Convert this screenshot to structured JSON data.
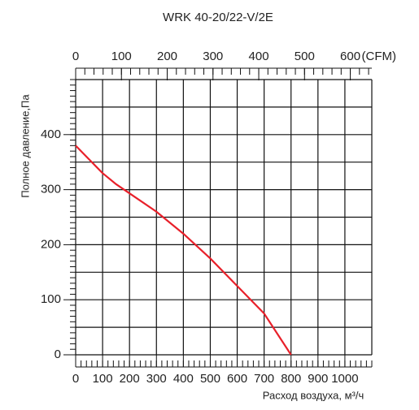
{
  "chart_data": {
    "type": "line",
    "title": "WRK 40-20/22-V/2E",
    "x_label": "Расход воздуха, м³/ч",
    "y_label": "Полное давление,Па",
    "x": [
      0,
      100,
      150,
      300,
      400,
      500,
      600,
      700,
      800
    ],
    "series": [
      {
        "name": "WRK 40-20/22-V/2E",
        "color": "#e8202a",
        "values": [
          380,
          330,
          310,
          260,
          220,
          175,
          125,
          75,
          0
        ]
      }
    ],
    "xlim": [
      0,
      1100
    ],
    "xticks": [
      0,
      100,
      200,
      300,
      400,
      500,
      600,
      700,
      800,
      900,
      1000
    ],
    "x2lim": [
      0,
      647
    ],
    "x2ticks": [
      0,
      100,
      200,
      300,
      400,
      500,
      600
    ],
    "x2_unit": "(CFM)",
    "ylim": [
      0,
      500
    ],
    "yticks": [
      0,
      100,
      200,
      300,
      400
    ],
    "grid": true
  }
}
